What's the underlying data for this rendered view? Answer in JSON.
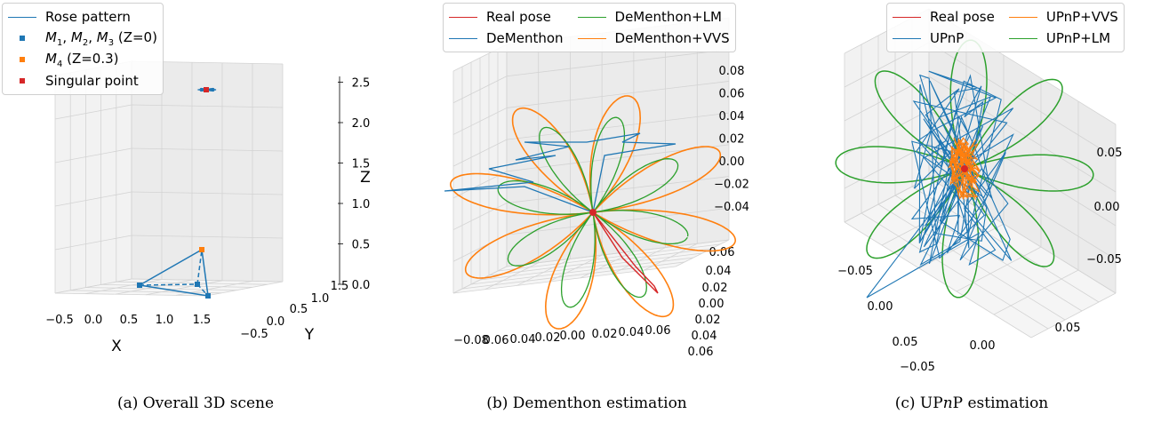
{
  "chart_data": [
    {
      "type": "line",
      "panel": "a",
      "caption": "(a) Overall 3D scene",
      "legend": {
        "placement": "top-left",
        "entries": [
          {
            "label": "Rose pattern",
            "kind": "line",
            "color": "#1f77b4"
          },
          {
            "label": "M1, M2, M3 (Z=0)",
            "kind": "marker",
            "color": "#1f77b4"
          },
          {
            "label": "M4 (Z=0.3)",
            "kind": "marker",
            "color": "#ff7f0e"
          },
          {
            "label": "Singular point",
            "kind": "marker",
            "color": "#d62728"
          }
        ]
      },
      "xlabel": "X",
      "ylabel": "Y",
      "zlabel": "Z",
      "x_ticks": [
        "−0.5",
        "0.0",
        "0.5",
        "1.0",
        "1.5"
      ],
      "y_ticks": [
        "−0.5",
        "0.0",
        "0.5",
        "1.0",
        "1.5"
      ],
      "z_ticks": [
        "0.0",
        "0.5",
        "1.0",
        "1.5",
        "2.0",
        "2.5"
      ],
      "xlim": [
        -0.7,
        1.7
      ],
      "ylim": [
        -0.7,
        1.7
      ],
      "zlim": [
        0,
        2.5
      ],
      "points": {
        "M1": {
          "x": 0.0,
          "y": 0.0,
          "z": 0
        },
        "M2": {
          "x": 1.6,
          "y": 0.0,
          "z": 0
        },
        "M3": {
          "x": 1.2,
          "y": 0.8,
          "z": 0
        },
        "M4": {
          "x": 1.0,
          "y": 1.3,
          "z": 0.3
        },
        "singular_point": {
          "x": 0.6,
          "y": 0.6,
          "z": 2.4
        }
      },
      "grid": true
    },
    {
      "type": "line",
      "panel": "b",
      "caption": "(b) Dementhon estimation",
      "legend": {
        "placement": "top",
        "entries": [
          {
            "label": "Real pose",
            "color": "#d62728"
          },
          {
            "label": "DeMenthon+LM",
            "color": "#2ca02c"
          },
          {
            "label": "DeMenthon",
            "color": "#1f77b4"
          },
          {
            "label": "DeMenthon+VVS",
            "color": "#ff7f0e"
          }
        ]
      },
      "x_ticks": [
        "−0.08",
        "0.06",
        "0.04",
        "0.02",
        "0.00",
        "0.02",
        "0.04",
        "0.06"
      ],
      "y_ticks": [
        "0.06",
        "0.04",
        "0.02",
        "0.00",
        "0.02",
        "0.04",
        "0.06"
      ],
      "z_ticks": [
        "0.08",
        "0.06",
        "0.04",
        "0.02",
        "0.00",
        "−0.02",
        "−0.04"
      ],
      "series": [
        {
          "name": "Real pose",
          "shape": "rose",
          "petals": 8,
          "amplitude": 0.06
        },
        {
          "name": "DeMenthon",
          "shape": "noisy rose",
          "amplitude": 0.06
        },
        {
          "name": "DeMenthon+LM",
          "shape": "rose",
          "petals": 8,
          "amplitude": 0.06
        },
        {
          "name": "DeMenthon+VVS",
          "shape": "rose",
          "petals": 8,
          "amplitude": 0.06
        }
      ],
      "grid": true
    },
    {
      "type": "line",
      "panel": "c",
      "caption": "(c) UPnP estimation",
      "caption_parts": [
        "(c) UP",
        "n",
        "P estimation"
      ],
      "legend": {
        "placement": "top",
        "entries": [
          {
            "label": "Real pose",
            "color": "#d62728"
          },
          {
            "label": "UPnP+VVS",
            "color": "#ff7f0e"
          },
          {
            "label": "UPnP",
            "color": "#1f77b4"
          },
          {
            "label": "UPnP+LM",
            "color": "#2ca02c"
          }
        ]
      },
      "x_ticks": [
        "−0.05",
        "0.00",
        "0.05"
      ],
      "y_ticks": [
        "0.05",
        "0.00",
        "−0.05"
      ],
      "z_ticks": [
        "0.05",
        "0.00",
        "−0.05"
      ],
      "series": [
        {
          "name": "Real pose",
          "shape": "rose",
          "petals": 8,
          "amplitude": 0.06
        },
        {
          "name": "UPnP",
          "shape": "noisy zigzag",
          "amplitude": 0.06
        },
        {
          "name": "UPnP+LM",
          "shape": "rose",
          "petals": 8,
          "amplitude": 0.06
        },
        {
          "name": "UPnP+VVS",
          "shape": "noisy cluster",
          "amplitude": 0.015
        }
      ],
      "grid": true
    }
  ]
}
